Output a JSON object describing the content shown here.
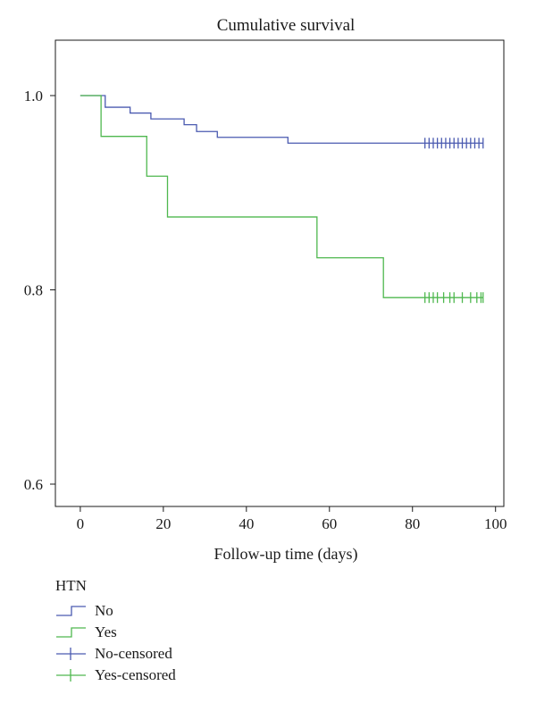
{
  "chart_data": {
    "type": "line",
    "subtype": "kaplan-meier step",
    "title": "Cumulative survival",
    "xlabel": "Follow-up time (days)",
    "ylabel": "",
    "xlim": [
      -6,
      102
    ],
    "ylim": [
      0.577,
      1.057
    ],
    "xticks": [
      0,
      20,
      40,
      60,
      80,
      100
    ],
    "yticks": [
      0.6,
      0.8,
      1.0
    ],
    "ytick_labels": [
      "0.6",
      "0.8",
      "1.0"
    ],
    "grid": false,
    "legend_title": "HTN",
    "legend_position": "bottom-left",
    "series": [
      {
        "name": "No",
        "color": "#4a5ab0",
        "steps": [
          [
            0,
            1.0
          ],
          [
            6,
            0.988
          ],
          [
            12,
            0.982
          ],
          [
            17,
            0.976
          ],
          [
            25,
            0.97
          ],
          [
            28,
            0.963
          ],
          [
            33,
            0.957
          ],
          [
            50,
            0.951
          ],
          [
            97,
            0.951
          ]
        ],
        "censored_name": "No-censored",
        "censored_x": [
          83,
          84,
          85,
          86,
          87,
          88,
          89,
          90,
          91,
          92,
          93,
          94,
          95,
          96,
          97
        ]
      },
      {
        "name": "Yes",
        "color": "#4fb84f",
        "steps": [
          [
            0,
            1.0
          ],
          [
            5,
            0.958
          ],
          [
            16,
            0.917
          ],
          [
            21,
            0.875
          ],
          [
            57,
            0.833
          ],
          [
            73,
            0.792
          ],
          [
            97,
            0.792
          ]
        ],
        "censored_name": "Yes-censored",
        "censored_x": [
          83,
          84,
          85,
          86,
          87.5,
          89,
          90,
          92,
          94,
          95.5,
          96.5,
          97
        ]
      }
    ]
  }
}
